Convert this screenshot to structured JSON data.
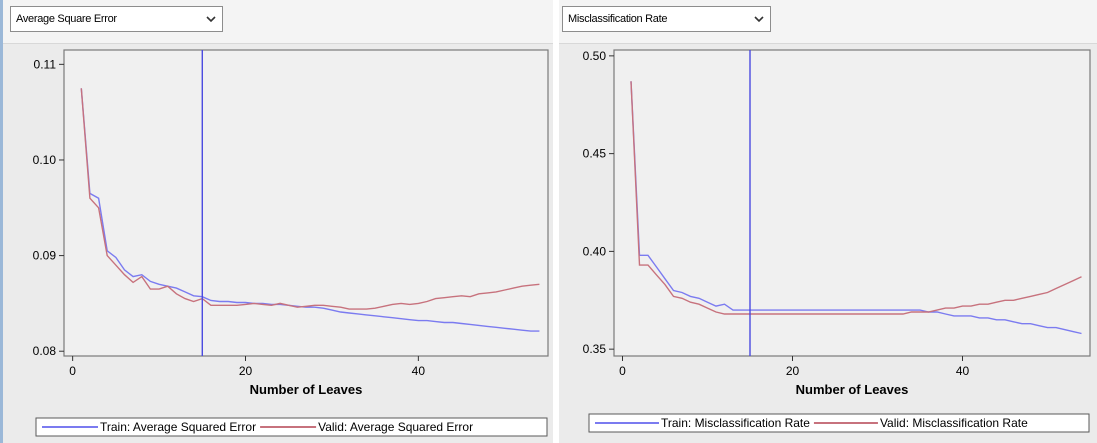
{
  "colors": {
    "train": "#7b7bf0",
    "valid": "#c7727d",
    "reference_line": "#4a4ae0",
    "plot_bg": "#f0f0f0",
    "grid": "#dcdcdc"
  },
  "left_panel": {
    "dropdown": {
      "selected": "Average Square Error",
      "icon": "chevron-down-icon"
    }
  },
  "right_panel": {
    "dropdown": {
      "selected": "Misclassification Rate",
      "icon": "chevron-down-icon"
    }
  },
  "chart_data": [
    {
      "type": "line",
      "xlabel": "Number of Leaves",
      "ylabel": "",
      "xlim": [
        -1,
        55
      ],
      "ylim": [
        0.0795,
        0.1115
      ],
      "xticks": [
        0,
        20,
        40
      ],
      "yticks": [
        0.08,
        0.09,
        0.1,
        0.11
      ],
      "ytick_labels": [
        "0.08",
        "0.09",
        "0.10",
        "0.11"
      ],
      "grid": true,
      "reference_x": 15,
      "legend_position": "bottom",
      "series": [
        {
          "name": "Train: Average Squared Error",
          "x": [
            1,
            2,
            3,
            4,
            5,
            6,
            7,
            8,
            9,
            10,
            11,
            12,
            13,
            14,
            15,
            16,
            17,
            18,
            19,
            20,
            21,
            22,
            23,
            24,
            25,
            26,
            27,
            28,
            29,
            30,
            31,
            32,
            33,
            34,
            35,
            36,
            37,
            38,
            39,
            40,
            41,
            42,
            43,
            44,
            45,
            46,
            47,
            48,
            49,
            50,
            51,
            52,
            53,
            54
          ],
          "values": [
            0.1075,
            0.0965,
            0.096,
            0.0905,
            0.0898,
            0.0885,
            0.0878,
            0.088,
            0.0873,
            0.087,
            0.0868,
            0.0866,
            0.0862,
            0.0858,
            0.0857,
            0.0853,
            0.0852,
            0.0852,
            0.0851,
            0.0851,
            0.085,
            0.085,
            0.0849,
            0.0849,
            0.0848,
            0.0847,
            0.0846,
            0.0846,
            0.0845,
            0.0843,
            0.0841,
            0.084,
            0.0839,
            0.0838,
            0.0837,
            0.0836,
            0.0835,
            0.0834,
            0.0833,
            0.0832,
            0.0832,
            0.0831,
            0.083,
            0.083,
            0.0829,
            0.0828,
            0.0827,
            0.0826,
            0.0825,
            0.0824,
            0.0823,
            0.0822,
            0.0821,
            0.0821
          ]
        },
        {
          "name": "Valid: Average Squared Error",
          "x": [
            1,
            2,
            3,
            4,
            5,
            6,
            7,
            8,
            9,
            10,
            11,
            12,
            13,
            14,
            15,
            16,
            17,
            18,
            19,
            20,
            21,
            22,
            23,
            24,
            25,
            26,
            27,
            28,
            29,
            30,
            31,
            32,
            33,
            34,
            35,
            36,
            37,
            38,
            39,
            40,
            41,
            42,
            43,
            44,
            45,
            46,
            47,
            48,
            49,
            50,
            51,
            52,
            53,
            54
          ],
          "values": [
            0.1075,
            0.096,
            0.095,
            0.09,
            0.089,
            0.088,
            0.0872,
            0.0878,
            0.0865,
            0.0865,
            0.0868,
            0.086,
            0.0855,
            0.0852,
            0.0855,
            0.0848,
            0.0848,
            0.0848,
            0.0848,
            0.0849,
            0.085,
            0.0849,
            0.0848,
            0.085,
            0.0848,
            0.0846,
            0.0847,
            0.0848,
            0.0848,
            0.0847,
            0.0846,
            0.0844,
            0.0844,
            0.0844,
            0.0845,
            0.0847,
            0.0849,
            0.085,
            0.0849,
            0.085,
            0.0852,
            0.0855,
            0.0856,
            0.0857,
            0.0858,
            0.0857,
            0.086,
            0.0861,
            0.0862,
            0.0864,
            0.0866,
            0.0868,
            0.0869,
            0.087
          ]
        }
      ]
    },
    {
      "type": "line",
      "xlabel": "Number of Leaves",
      "ylabel": "",
      "xlim": [
        -1,
        55
      ],
      "ylim": [
        0.3465,
        0.503
      ],
      "xticks": [
        0,
        20,
        40
      ],
      "yticks": [
        0.35,
        0.4,
        0.45,
        0.5
      ],
      "ytick_labels": [
        "0.35",
        "0.40",
        "0.45",
        "0.50"
      ],
      "grid": true,
      "reference_x": 15,
      "legend_position": "bottom",
      "series": [
        {
          "name": "Train: Misclassification Rate",
          "x": [
            1,
            2,
            3,
            4,
            5,
            6,
            7,
            8,
            9,
            10,
            11,
            12,
            13,
            14,
            15,
            16,
            17,
            18,
            19,
            20,
            21,
            22,
            23,
            24,
            25,
            26,
            27,
            28,
            29,
            30,
            31,
            32,
            33,
            34,
            35,
            36,
            37,
            38,
            39,
            40,
            41,
            42,
            43,
            44,
            45,
            46,
            47,
            48,
            49,
            50,
            51,
            52,
            53,
            54
          ],
          "values": [
            0.487,
            0.398,
            0.398,
            0.392,
            0.386,
            0.38,
            0.379,
            0.377,
            0.376,
            0.374,
            0.372,
            0.373,
            0.37,
            0.37,
            0.37,
            0.37,
            0.37,
            0.37,
            0.37,
            0.37,
            0.37,
            0.37,
            0.37,
            0.37,
            0.37,
            0.37,
            0.37,
            0.37,
            0.37,
            0.37,
            0.37,
            0.37,
            0.37,
            0.37,
            0.37,
            0.369,
            0.369,
            0.368,
            0.367,
            0.367,
            0.367,
            0.366,
            0.366,
            0.365,
            0.365,
            0.364,
            0.363,
            0.363,
            0.362,
            0.361,
            0.361,
            0.36,
            0.359,
            0.358
          ]
        },
        {
          "name": "Valid: Misclassification Rate",
          "x": [
            1,
            2,
            3,
            4,
            5,
            6,
            7,
            8,
            9,
            10,
            11,
            12,
            13,
            14,
            15,
            16,
            17,
            18,
            19,
            20,
            21,
            22,
            23,
            24,
            25,
            26,
            27,
            28,
            29,
            30,
            31,
            32,
            33,
            34,
            35,
            36,
            37,
            38,
            39,
            40,
            41,
            42,
            43,
            44,
            45,
            46,
            47,
            48,
            49,
            50,
            51,
            52,
            53,
            54
          ],
          "values": [
            0.487,
            0.393,
            0.393,
            0.388,
            0.383,
            0.377,
            0.376,
            0.374,
            0.373,
            0.371,
            0.369,
            0.368,
            0.368,
            0.368,
            0.368,
            0.368,
            0.368,
            0.368,
            0.368,
            0.368,
            0.368,
            0.368,
            0.368,
            0.368,
            0.368,
            0.368,
            0.368,
            0.368,
            0.368,
            0.368,
            0.368,
            0.368,
            0.368,
            0.369,
            0.369,
            0.369,
            0.37,
            0.371,
            0.371,
            0.372,
            0.372,
            0.373,
            0.373,
            0.374,
            0.375,
            0.375,
            0.376,
            0.377,
            0.378,
            0.379,
            0.381,
            0.383,
            0.385,
            0.387
          ]
        }
      ]
    }
  ]
}
